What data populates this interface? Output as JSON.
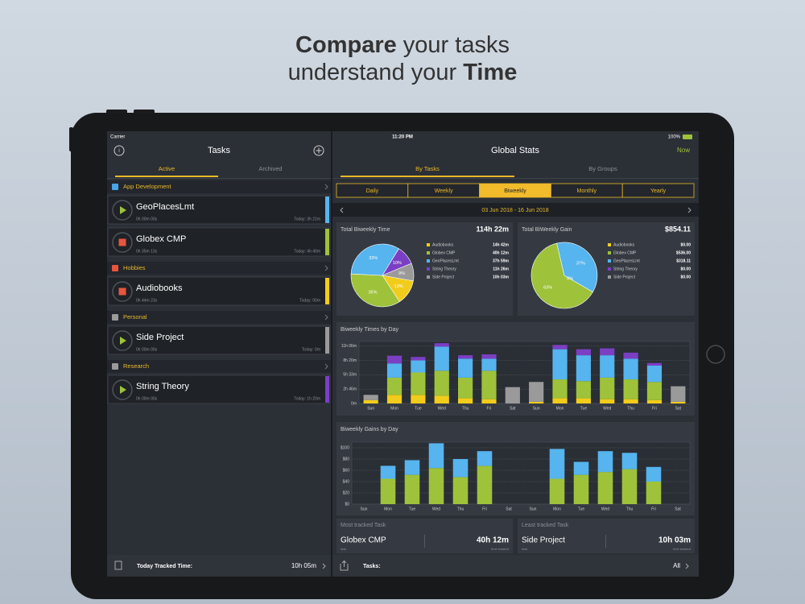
{
  "headline": {
    "line1_bold": "Compare",
    "line1_rest": " your tasks",
    "line2_rest": "understand your ",
    "line2_bold": "Time"
  },
  "status": {
    "carrier": "Carrier",
    "time": "11:20 PM",
    "battery": "100%"
  },
  "tasks_panel": {
    "title": "Tasks",
    "tabs": [
      "Active",
      "Archived"
    ],
    "active_tab": 0,
    "groups": [
      {
        "name": "App Development",
        "color": "#4aa3e8",
        "tasks": [
          {
            "name": "GeoPlacesLmt",
            "timer": "0h 00m 00s",
            "today": "Today: 3h 21m",
            "running": false,
            "color": "#56b4ee"
          },
          {
            "name": "Globex CMP",
            "timer": "0h 35m 13s",
            "today": "Today: 4h 40m",
            "running": true,
            "color": "#9ec23a"
          }
        ]
      },
      {
        "name": "Hobbies",
        "color": "#e8553e",
        "tasks": [
          {
            "name": "Audiobooks",
            "timer": "0h 44m 23s",
            "today": "Today: 00m",
            "running": true,
            "color": "#f2cc1a"
          }
        ]
      },
      {
        "name": "Personal",
        "color": "#9a9a9a",
        "tasks": [
          {
            "name": "Side Project",
            "timer": "0h 00m 00s",
            "today": "Today: 0m",
            "running": false,
            "color": "#9a9a9a"
          }
        ]
      },
      {
        "name": "Research",
        "color": "#9a9a9a",
        "tasks": [
          {
            "name": "String Theory",
            "timer": "0h 00m 00s",
            "today": "Today: 1h 20m",
            "running": false,
            "color": "#7b3fc4"
          }
        ]
      }
    ],
    "footer_label": "Today Tracked Time:",
    "footer_value": "10h 05m"
  },
  "stats": {
    "title": "Global Stats",
    "now": "Now",
    "tabs": [
      "By Tasks",
      "By Groups"
    ],
    "active_tab": 0,
    "periods": [
      "Daily",
      "Weekly",
      "Biweekly",
      "Monthly",
      "Yearly"
    ],
    "selected_period": 2,
    "range": "03 Jun 2018 - 16 Jun 2018",
    "most": {
      "title": "Most tracked Task",
      "task": "Globex CMP",
      "time": "40h 12m",
      "task_caption": "task",
      "time_caption": "time tracked"
    },
    "least": {
      "title": "Least tracked Task",
      "task": "Side Project",
      "time": "10h 03m",
      "task_caption": "task",
      "time_caption": "time tracked"
    },
    "footer_label": "Tasks:",
    "footer_value": "All"
  },
  "chart_data": [
    {
      "type": "pie",
      "title": "Total Biweekly Time",
      "total": "114h 22m",
      "series": [
        {
          "name": "Audiobooks",
          "color": "#f2cc1a",
          "legend_value": "14h 42m"
        },
        {
          "name": "Globex CMP",
          "color": "#9ec23a",
          "legend_value": "40h 12m"
        },
        {
          "name": "GeoPlacesLmt",
          "color": "#56b4ee",
          "legend_value": "37h 59m"
        },
        {
          "name": "String Theory",
          "color": "#7b3fc4",
          "legend_value": "11h 26m"
        },
        {
          "name": "Side Project",
          "color": "#9a9a9a",
          "legend_value": "10h 03m"
        }
      ],
      "values": [
        13,
        35,
        33,
        10,
        9
      ],
      "value_labels": [
        "13%",
        "35%",
        "33%",
        "10%",
        "9%"
      ]
    },
    {
      "type": "pie",
      "title": "Total BiWeekly Gain",
      "total": "$854.11",
      "series": [
        {
          "name": "Audiobooks",
          "color": "#f2cc1a",
          "legend_value": "$0.00"
        },
        {
          "name": "Globex CMP",
          "color": "#9ec23a",
          "legend_value": "$536.00"
        },
        {
          "name": "GeoPlacesLmt",
          "color": "#56b4ee",
          "legend_value": "$318.11"
        },
        {
          "name": "String Theory",
          "color": "#7b3fc4",
          "legend_value": "$0.00"
        },
        {
          "name": "Side Project",
          "color": "#9a9a9a",
          "legend_value": "$0.00"
        }
      ],
      "values": [
        0,
        63,
        37,
        0,
        0
      ],
      "value_labels": [
        null,
        "63%",
        "37%",
        "0%",
        null
      ]
    },
    {
      "type": "bar",
      "stacked": true,
      "title": "Biweekly Times by Day",
      "categories": [
        "Sun",
        "Mon",
        "Tue",
        "Wed",
        "Thu",
        "Fri",
        "Sat",
        "Sun",
        "Mon",
        "Tue",
        "Wed",
        "Thu",
        "Fri",
        "Sat"
      ],
      "series": [
        {
          "color": "#f2cc1a",
          "values": [
            40,
            100,
            100,
            90,
            60,
            50,
            0,
            20,
            60,
            60,
            50,
            50,
            40,
            20
          ]
        },
        {
          "color": "#9ec23a",
          "values": [
            0,
            200,
            260,
            290,
            240,
            330,
            0,
            0,
            220,
            200,
            250,
            230,
            210,
            0
          ]
        },
        {
          "color": "#56b4ee",
          "values": [
            0,
            165,
            140,
            280,
            220,
            140,
            0,
            0,
            350,
            300,
            260,
            240,
            190,
            0
          ]
        },
        {
          "color": "#7b3fc4",
          "values": [
            0,
            90,
            40,
            40,
            40,
            50,
            0,
            0,
            50,
            70,
            80,
            70,
            30,
            0
          ]
        },
        {
          "color": "#9a9a9a",
          "values": [
            60,
            0,
            0,
            0,
            0,
            0,
            190,
            230,
            0,
            0,
            0,
            0,
            0,
            180
          ]
        }
      ],
      "ylim": [
        0,
        720
      ],
      "yticks": [
        {
          "value": 0,
          "label": "0m"
        },
        {
          "value": 166,
          "label": "2h 46m"
        },
        {
          "value": 333,
          "label": "5h 33m"
        },
        {
          "value": 500,
          "label": "8h 20m"
        },
        {
          "value": 666,
          "label": "11h 06m"
        }
      ],
      "grid": true
    },
    {
      "type": "bar",
      "stacked": true,
      "title": "Biweekly Gains by Day",
      "categories": [
        "Sun",
        "Mon",
        "Tue",
        "Wed",
        "Thu",
        "Fri",
        "Sat",
        "Sun",
        "Mon",
        "Tue",
        "Wed",
        "Thu",
        "Fri",
        "Sat"
      ],
      "series": [
        {
          "color": "#9ec23a",
          "values": [
            0,
            45,
            52,
            64,
            48,
            68,
            0,
            0,
            45,
            52,
            57,
            62,
            40,
            0
          ]
        },
        {
          "color": "#56b4ee",
          "values": [
            0,
            23,
            26,
            44,
            32,
            26,
            0,
            0,
            53,
            23,
            37,
            29,
            26,
            0
          ]
        }
      ],
      "ylim": [
        0,
        110
      ],
      "yticks": [
        {
          "value": 0,
          "label": "$0"
        },
        {
          "value": 20,
          "label": "$20"
        },
        {
          "value": 40,
          "label": "$40"
        },
        {
          "value": 60,
          "label": "$60"
        },
        {
          "value": 80,
          "label": "$80"
        },
        {
          "value": 100,
          "label": "$100"
        }
      ],
      "grid": true
    }
  ]
}
